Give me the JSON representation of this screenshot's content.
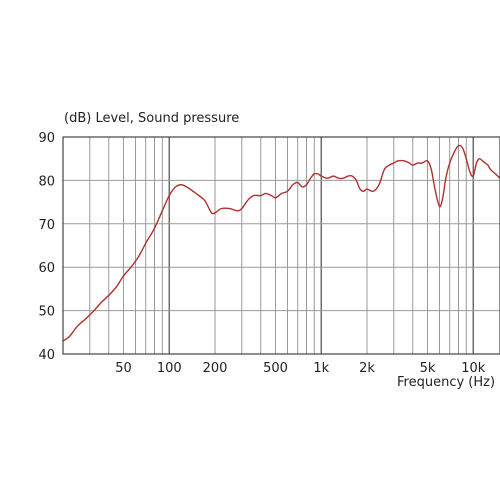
{
  "chart_data": {
    "type": "line",
    "ylabel": "(dB)  Level, Sound pressure",
    "xlabel": "Frequency  (Hz)",
    "x_scale": "log",
    "xlim": [
      20,
      15000
    ],
    "ylim": [
      40,
      90
    ],
    "y_ticks": [
      40,
      50,
      60,
      70,
      80,
      90
    ],
    "y_tick_labels": [
      "40",
      "50",
      "60",
      "70",
      "80",
      "90"
    ],
    "x_ticks": [
      50,
      100,
      200,
      500,
      1000,
      2000,
      5000,
      10000
    ],
    "x_tick_labels": [
      "50",
      "100",
      "200",
      "500",
      "1k",
      "2k",
      "5k",
      "10k"
    ],
    "grid": true,
    "colors": {
      "line": "#b03030",
      "major_grid": "#5a5a5a",
      "minor_grid": "#9a9a9a"
    },
    "series": [
      {
        "x": [
          20,
          22,
          25,
          28,
          32,
          36,
          40,
          45,
          50,
          56,
          63,
          70,
          80,
          90,
          100,
          110,
          120,
          130,
          150,
          170,
          180,
          190,
          200,
          220,
          250,
          280,
          300,
          330,
          360,
          400,
          430,
          470,
          500,
          550,
          600,
          650,
          700,
          750,
          800,
          850,
          900,
          950,
          1000,
          1100,
          1200,
          1300,
          1400,
          1500,
          1600,
          1700,
          1800,
          1900,
          2000,
          2200,
          2400,
          2600,
          2800,
          3000,
          3200,
          3500,
          3800,
          4000,
          4300,
          4600,
          5000,
          5300,
          5600,
          6000,
          6300,
          6600,
          7000,
          7500,
          8000,
          8500,
          9000,
          9500,
          10000,
          10500,
          11000,
          11500,
          12000,
          12500,
          13000,
          14000,
          15000
        ],
        "values": [
          43,
          44,
          46.5,
          48,
          50,
          52,
          53.5,
          55.5,
          58,
          60,
          62.5,
          65.5,
          69,
          73,
          76.5,
          78.5,
          79,
          78.5,
          77,
          75.5,
          74,
          72.5,
          72.5,
          73.5,
          73.5,
          73,
          73.5,
          75.5,
          76.5,
          76.5,
          77,
          76.5,
          76,
          77,
          77.5,
          79,
          79.5,
          78.5,
          79,
          80.5,
          81.5,
          81.5,
          81,
          80.5,
          81,
          80.5,
          80.5,
          81,
          81,
          80,
          78,
          77.5,
          78,
          77.5,
          79,
          82.5,
          83.5,
          84,
          84.5,
          84.5,
          84,
          83.5,
          84,
          84,
          84.5,
          82.5,
          78,
          74,
          76,
          80.5,
          84,
          86.5,
          88,
          87.5,
          85,
          82,
          81,
          84,
          85,
          84.5,
          84,
          83.5,
          82.5,
          81.5,
          80.5
        ]
      }
    ]
  }
}
